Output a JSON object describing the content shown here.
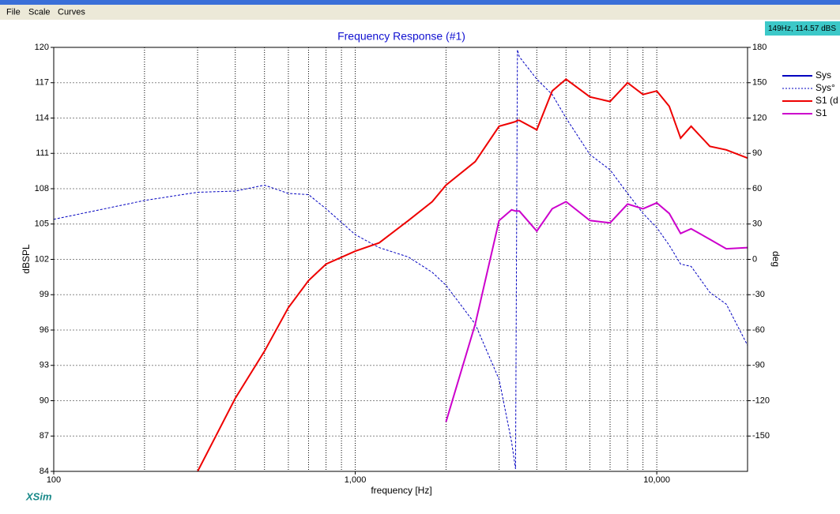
{
  "menu": [
    "File",
    "Scale",
    "Curves"
  ],
  "status": "149Hz, 114.57 dBS",
  "brand": "XSim",
  "chart_data": {
    "type": "line",
    "title": "Frequency Response (#1)",
    "x_label": "frequency [Hz]",
    "y_label": "dBSPL",
    "y2_label": "deg",
    "x_scale": "log",
    "grid": true,
    "legend": "right",
    "x": [
      100,
      200,
      300,
      400,
      500,
      600,
      700,
      800,
      1000,
      1200,
      1500,
      1800,
      2000,
      2500,
      3000,
      3300,
      3400,
      3450,
      3500,
      4000,
      4500,
      5000,
      6000,
      7000,
      8000,
      9000,
      10000,
      11000,
      12000,
      13000,
      15000,
      17000,
      20000
    ],
    "xlim": [
      100,
      20000
    ],
    "xticks": [
      100,
      {
        "value": 1000,
        "label": "1,000"
      },
      {
        "value": 10000,
        "label": "10,000"
      }
    ],
    "xminor": [
      200,
      300,
      400,
      500,
      600,
      700,
      800,
      900,
      2000,
      3000,
      4000,
      5000,
      6000,
      7000,
      8000,
      9000
    ],
    "ylim": [
      84,
      120
    ],
    "yticks": [
      84,
      87,
      90,
      93,
      96,
      99,
      102,
      105,
      108,
      111,
      114,
      117,
      120
    ],
    "y2lim": [
      -180,
      180
    ],
    "y2ticks": [
      -150,
      -120,
      -90,
      -60,
      -30,
      0,
      30,
      60,
      90,
      120,
      150,
      180
    ],
    "series": [
      {
        "name": "Sys",
        "color": "#0000c0",
        "style": "solid",
        "values": [
          null,
          null,
          null,
          null,
          null,
          null,
          null,
          null,
          null,
          null,
          null,
          null,
          null,
          null,
          null,
          null,
          null,
          null,
          null,
          null,
          null,
          null,
          null,
          null,
          null,
          null,
          null,
          null,
          null,
          null,
          null,
          null,
          null
        ]
      },
      {
        "name": "Sys°",
        "color": "#0000c0",
        "style": "dotted",
        "axis": "y2",
        "values": [
          34,
          50,
          57,
          58,
          63,
          56,
          55,
          43,
          21,
          10,
          2,
          -11,
          -22,
          -55,
          -102,
          -155,
          -178,
          178,
          172,
          153,
          140,
          120,
          89,
          76,
          56,
          39,
          27,
          12,
          -4,
          -6,
          -28,
          -38,
          -73
        ]
      },
      {
        "name": "S1 (d",
        "color": "#ee0000",
        "style": "solid",
        "values": [
          null,
          null,
          84,
          90.2,
          94.2,
          97.9,
          100.2,
          101.6,
          102.7,
          103.4,
          105.3,
          106.9,
          108.3,
          110.3,
          113.3,
          113.6,
          113.7,
          113.8,
          113.8,
          113.0,
          116.3,
          117.3,
          115.8,
          115.4,
          117.0,
          116.0,
          116.3,
          115.0,
          112.3,
          113.3,
          111.6,
          111.3,
          110.6
        ]
      },
      {
        "name": "S1",
        "color": "#cc00cc",
        "style": "solid",
        "values": [
          null,
          null,
          null,
          null,
          null,
          null,
          null,
          null,
          null,
          null,
          null,
          null,
          88.2,
          96.5,
          105.3,
          106.2,
          106.1,
          106.1,
          106.1,
          104.4,
          106.3,
          106.9,
          105.3,
          105.1,
          106.7,
          106.3,
          106.8,
          105.9,
          104.2,
          104.6,
          103.7,
          102.9,
          103.0
        ]
      }
    ]
  }
}
